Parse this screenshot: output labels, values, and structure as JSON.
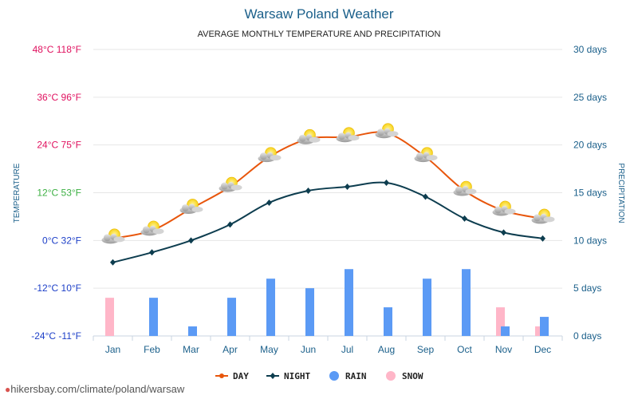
{
  "chart_data": {
    "type": "line",
    "title": "Warsaw Poland Weather",
    "subtitle": "AVERAGE MONTHLY TEMPERATURE AND PRECIPITATION",
    "ylabel": "TEMPERATURE",
    "y2label": "PRECIPITATION",
    "categories": [
      "Jan",
      "Feb",
      "Mar",
      "Apr",
      "May",
      "Jun",
      "Jul",
      "Aug",
      "Sep",
      "Oct",
      "Nov",
      "Dec"
    ],
    "ylim": [
      -24,
      48
    ],
    "y2lim": [
      0,
      30
    ],
    "y_ticks": [
      {
        "value": 48,
        "label": "48°C 118°F",
        "color": "#e0115f"
      },
      {
        "value": 36,
        "label": "36°C 96°F",
        "color": "#e0115f"
      },
      {
        "value": 24,
        "label": "24°C 75°F",
        "color": "#e0115f"
      },
      {
        "value": 12,
        "label": "12°C 53°F",
        "color": "#3cb043"
      },
      {
        "value": 0,
        "label": "0°C 32°F",
        "color": "#1e40c8"
      },
      {
        "value": -12,
        "label": "-12°C 10°F",
        "color": "#1e40c8"
      },
      {
        "value": -24,
        "label": "-24°C -11°F",
        "color": "#1e40c8"
      }
    ],
    "y2_ticks": [
      {
        "value": 30,
        "label": "30 days"
      },
      {
        "value": 25,
        "label": "25 days"
      },
      {
        "value": 20,
        "label": "20 days"
      },
      {
        "value": 15,
        "label": "15 days"
      },
      {
        "value": 10,
        "label": "10 days"
      },
      {
        "value": 5,
        "label": "5 days"
      },
      {
        "value": 0,
        "label": "0 days"
      }
    ],
    "series": [
      {
        "name": "DAY",
        "type": "line",
        "color": "#e8560c",
        "values": [
          0.5,
          2.5,
          8,
          13.5,
          21,
          25.5,
          26,
          27,
          21,
          12.5,
          7.5,
          5.5
        ]
      },
      {
        "name": "NIGHT",
        "type": "line",
        "color": "#0d3d4f",
        "values": [
          -5.5,
          -3,
          0,
          4,
          9.5,
          12.5,
          13.5,
          14.5,
          11,
          5.5,
          2,
          0.5
        ]
      },
      {
        "name": "RAIN",
        "type": "bar",
        "color": "#5b9af5",
        "values": [
          0,
          4,
          1,
          4,
          6,
          5,
          7,
          3,
          6,
          7,
          1,
          2
        ]
      },
      {
        "name": "SNOW",
        "type": "bar",
        "color": "#ffb6c8",
        "values": [
          4,
          0,
          0,
          0,
          0,
          0,
          0,
          0,
          0,
          0,
          3,
          1
        ]
      }
    ],
    "legend": [
      {
        "name": "DAY",
        "color": "#e8560c",
        "marker": "line-dot"
      },
      {
        "name": "NIGHT",
        "color": "#0d3d4f",
        "marker": "line-diamond"
      },
      {
        "name": "RAIN",
        "color": "#5b9af5",
        "marker": "circle"
      },
      {
        "name": "SNOW",
        "color": "#ffb6c8",
        "marker": "circle"
      }
    ],
    "legend_position": "bottom",
    "grid": true
  },
  "footer": {
    "url": "hikersbay.com/climate/poland/warsaw"
  }
}
